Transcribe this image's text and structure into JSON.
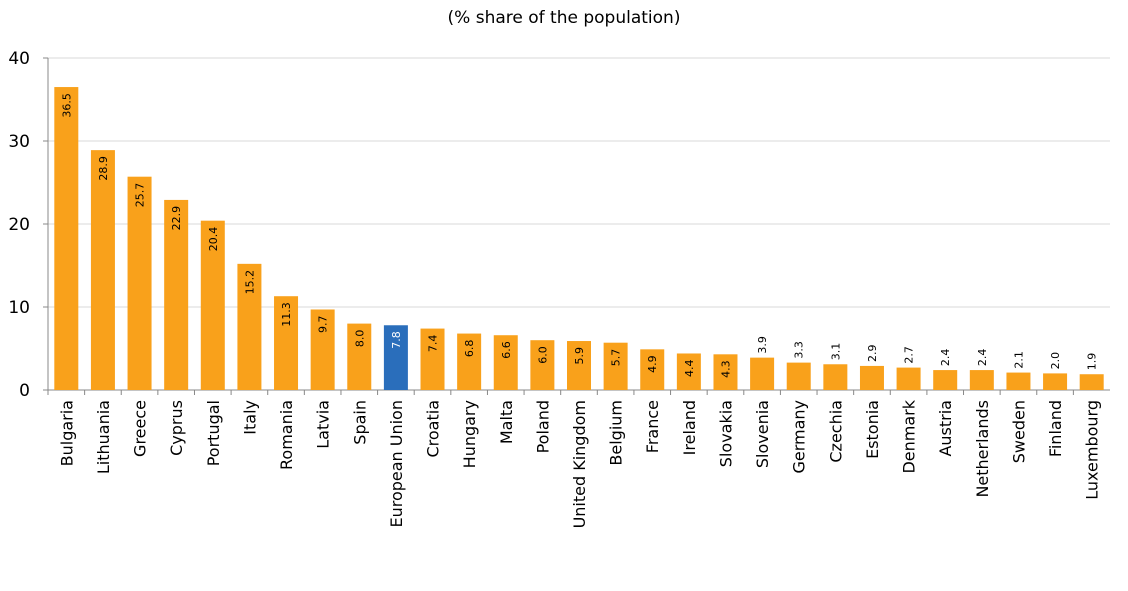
{
  "chart_data": {
    "type": "bar",
    "subtitle": "(% share of the population)",
    "categories": [
      "Bulgaria",
      "Lithuania",
      "Greece",
      "Cyprus",
      "Portugal",
      "Italy",
      "Romania",
      "Latvia",
      "Spain",
      "European Union",
      "Croatia",
      "Hungary",
      "Malta",
      "Poland",
      "United Kingdom",
      "Belgium",
      "France",
      "Ireland",
      "Slovakia",
      "Slovenia",
      "Germany",
      "Czechia",
      "Estonia",
      "Denmark",
      "Austria",
      "Netherlands",
      "Sweden",
      "Finland",
      "Luxembourg"
    ],
    "values": [
      36.5,
      28.9,
      25.7,
      22.9,
      20.4,
      15.2,
      11.3,
      9.7,
      8.0,
      7.8,
      7.4,
      6.8,
      6.6,
      6.0,
      5.9,
      5.7,
      4.9,
      4.4,
      4.3,
      3.9,
      3.3,
      3.1,
      2.9,
      2.7,
      2.4,
      2.4,
      2.1,
      2.0,
      1.9
    ],
    "ylim": [
      0,
      40
    ],
    "yticks": [
      0,
      10,
      20,
      30,
      40
    ],
    "grid": true,
    "colors": {
      "default": "#F9A11B",
      "highlight": "#2A6EBB",
      "grid": "#D9D9D9"
    },
    "highlight": "European Union"
  }
}
